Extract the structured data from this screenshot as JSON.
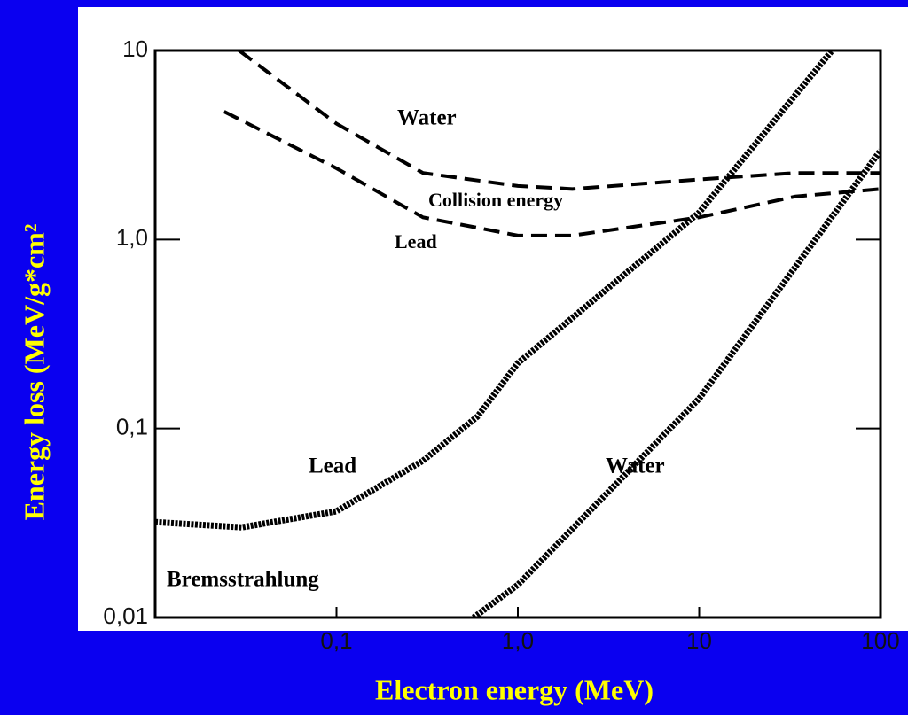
{
  "chart_data": {
    "type": "line",
    "xlabel": "Electron energy (MeV)",
    "ylabel": "Energy loss (MeV/g*cm²",
    "xscale": "log",
    "yscale": "log",
    "xlim": [
      0.01,
      100
    ],
    "ylim": [
      0.01,
      10
    ],
    "xticks": [
      {
        "value": 0.1,
        "label": "0,1"
      },
      {
        "value": 1,
        "label": "1,0"
      },
      10,
      100
    ],
    "yticks": [
      10,
      {
        "value": 1,
        "label": "1,0"
      },
      {
        "value": 0.1,
        "label": "0,1"
      },
      {
        "value": 0.01,
        "label": "0,01"
      }
    ],
    "annotations": [
      "Water",
      "Collision energy",
      "Lead",
      "Lead",
      "Water",
      "Bremsstrahlung"
    ],
    "series": [
      {
        "color": "#000000",
        "style": "dashed",
        "x": [
          0.029,
          0.1,
          0.3,
          1,
          2,
          10,
          34,
          100
        ],
        "values": [
          10,
          4.1,
          2.25,
          1.92,
          1.85,
          2.08,
          2.25,
          2.25
        ]
      },
      {
        "color": "#000000",
        "style": "dashed",
        "x": [
          0.024,
          0.1,
          0.3,
          1,
          2,
          10,
          34,
          100
        ],
        "values": [
          4.75,
          2.38,
          1.31,
          1.05,
          1.05,
          1.31,
          1.69,
          1.85
        ]
      },
      {
        "color": "#000000",
        "style": "hatched",
        "x": [
          0.01,
          0.03,
          0.1,
          0.3,
          0.6,
          1,
          10,
          54
        ],
        "values": [
          0.032,
          0.03,
          0.0365,
          0.0676,
          0.116,
          0.222,
          1.39,
          10
        ]
      },
      {
        "color": "#000000",
        "style": "hatched",
        "x": [
          0.57,
          1,
          10,
          100
        ],
        "values": [
          0.01,
          0.0149,
          0.144,
          2.96
        ]
      }
    ]
  }
}
